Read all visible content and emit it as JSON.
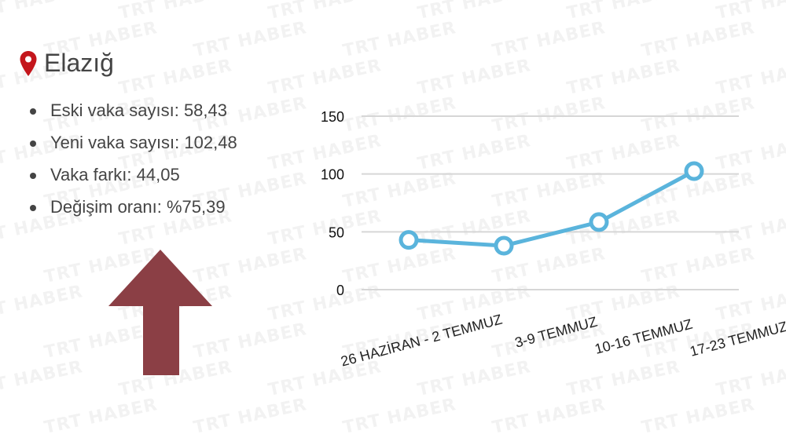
{
  "watermark": "TRT HABER",
  "location": {
    "icon": "map-pin-icon",
    "pin_color": "#c4161c",
    "name": "Elazığ"
  },
  "stats": [
    "Eski vaka sayısı: 58,43",
    "Yeni vaka sayısı: 102,48",
    "Vaka farkı: 44,05",
    "Değişim oranı: %75,39"
  ],
  "trend_indicator": {
    "icon": "arrow-up-icon",
    "color": "#8b3f45"
  },
  "chart_data": {
    "type": "line",
    "categories": [
      "26 HAZİRAN - 2 TEMMUZ",
      "3-9 TEMMUZ",
      "10-16 TEMMUZ",
      "17-23 TEMMUZ"
    ],
    "values": [
      43,
      38,
      58.43,
      102.48
    ],
    "ylim": [
      0,
      150
    ],
    "yticks": [
      0,
      50,
      100,
      150
    ],
    "grid": true,
    "legend": "none",
    "line_color": "#5ab4dc"
  }
}
